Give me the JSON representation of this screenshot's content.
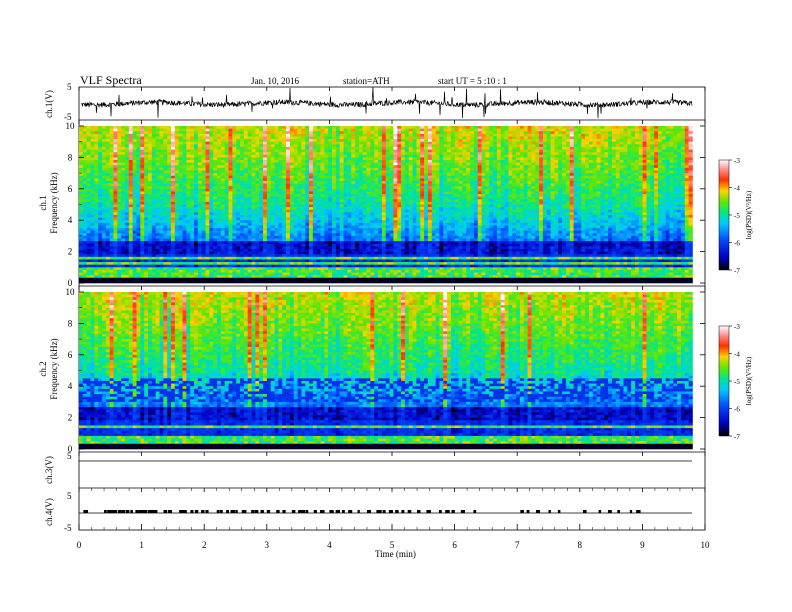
{
  "header": {
    "title": "VLF  Spectra",
    "date": "Jan. 10, 2016",
    "station": "station=ATH",
    "start": "start  UT  =   5  :10 : 1"
  },
  "colors": {
    "colormap": [
      "#000000",
      "#0000c8",
      "#0050ff",
      "#00c8ff",
      "#00e68c",
      "#64e600",
      "#ffd200",
      "#ff3200",
      "#ff9696",
      "#ffffff"
    ]
  },
  "chart_data": [
    {
      "type": "line",
      "panel": "ch1-waveform",
      "ylabel": "ch.1(V)",
      "yticks": [
        "5",
        "-5"
      ],
      "ylim": [
        -5,
        5
      ],
      "xlim": [
        0,
        10
      ],
      "baseline": 0
    },
    {
      "type": "heatmap",
      "panel": "ch1-spectrogram",
      "ylabel": "ch.1\nFrequency  (kHz)",
      "ylabel_lines": [
        "ch.1",
        "Frequency  (kHz)"
      ],
      "yticks": [
        "0",
        "2",
        "4",
        "6",
        "8",
        "10"
      ],
      "ylim": [
        0,
        10
      ],
      "xlim": [
        0,
        9.8
      ],
      "colorbar": {
        "label": "log(PSD)(V²/Hz)",
        "ticks": [
          "-3",
          "-4",
          "-5",
          "-6",
          "-7"
        ],
        "range": [
          -7,
          -3
        ]
      }
    },
    {
      "type": "heatmap",
      "panel": "ch2-spectrogram",
      "ylabel": "ch.2\nFrequency  (kHz)",
      "ylabel_lines": [
        "ch.2",
        "Frequency  (kHz)"
      ],
      "yticks": [
        "0",
        "2",
        "4",
        "6",
        "8",
        "10"
      ],
      "ylim": [
        0,
        10
      ],
      "xlim": [
        0,
        9.8
      ],
      "colorbar": {
        "label": "log(PSD)(V²/Hz)",
        "ticks": [
          "-3",
          "-4",
          "-5",
          "-6",
          "-7"
        ],
        "range": [
          -7,
          -3
        ]
      }
    },
    {
      "type": "line",
      "panel": "ch3-waveform",
      "ylabel": "ch.3(V)",
      "yticks": [
        "5"
      ],
      "ylim": [
        -5,
        5
      ],
      "baseline": 0
    },
    {
      "type": "line",
      "panel": "ch4-waveform",
      "ylabel": "ch.4(V)",
      "yticks": [
        "5",
        "-5"
      ],
      "ylim": [
        -5,
        5
      ],
      "baseline": 0,
      "pulse_times_min": [
        0.07,
        0.4,
        0.45,
        0.5,
        0.55,
        0.62,
        0.68,
        0.75,
        0.82,
        0.9,
        0.95,
        1.02,
        1.1,
        1.15,
        1.2,
        1.35,
        1.42,
        1.6,
        1.65,
        1.78,
        1.85,
        1.95,
        2.02,
        2.2,
        2.25,
        2.35,
        2.42,
        2.5,
        2.6,
        2.75,
        2.8,
        2.9,
        3.0,
        3.15,
        3.25,
        3.4,
        3.5,
        3.55,
        3.62,
        3.75,
        3.85,
        4.0,
        4.1,
        4.2,
        4.3,
        4.45,
        4.6,
        4.75,
        4.8,
        4.85,
        4.95,
        5.05,
        5.15,
        5.25,
        5.4,
        5.55,
        5.75,
        5.85,
        5.95,
        6.1,
        6.3,
        7.05,
        7.15,
        7.3,
        7.5,
        7.65,
        8.05,
        8.3,
        8.45,
        8.6,
        8.8,
        8.9
      ]
    }
  ],
  "xaxis": {
    "label": "Time  (min)",
    "ticks": [
      "0",
      "1",
      "2",
      "3",
      "4",
      "5",
      "6",
      "7",
      "8",
      "9",
      "10"
    ],
    "range": [
      0,
      10
    ]
  }
}
